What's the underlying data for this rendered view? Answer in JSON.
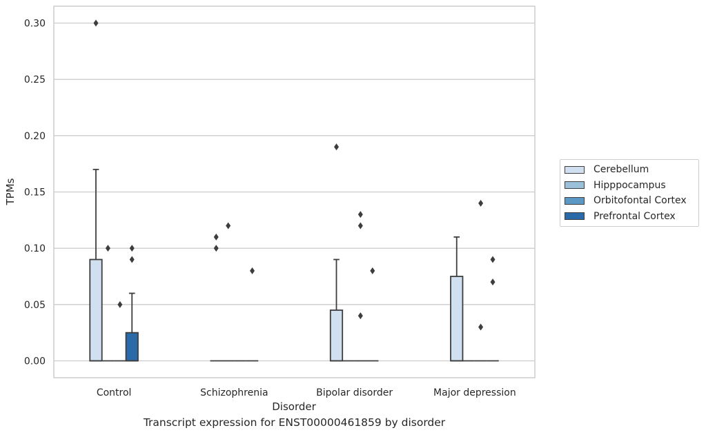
{
  "chart_data": {
    "type": "box",
    "xlabel": "Disorder",
    "ylabel": "TPMs",
    "caption": "Transcript expression for ENST00000461859 by disorder",
    "categories": [
      "Control",
      "Schizophrenia",
      "Bipolar disorder",
      "Major depression"
    ],
    "ylim": [
      -0.015,
      0.315
    ],
    "yticks": [
      0.0,
      0.05,
      0.1,
      0.15,
      0.2,
      0.25,
      0.3
    ],
    "ytick_labels": [
      "0.00",
      "0.05",
      "0.10",
      "0.15",
      "0.20",
      "0.25",
      "0.30"
    ],
    "grid": true,
    "legend_position": "right",
    "series": [
      {
        "name": "Cerebellum",
        "color": "#d1e0f0",
        "boxes": [
          {
            "q1": 0.0,
            "median": 0.0,
            "q3": 0.09,
            "whisker_low": 0.0,
            "whisker_high": 0.17,
            "outliers": [
              0.3
            ]
          },
          {
            "q1": 0.0,
            "median": 0.0,
            "q3": 0.0,
            "whisker_low": 0.0,
            "whisker_high": 0.0,
            "outliers": [
              0.1,
              0.11
            ]
          },
          {
            "q1": 0.0,
            "median": 0.0,
            "q3": 0.045,
            "whisker_low": 0.0,
            "whisker_high": 0.09,
            "outliers": [
              0.19
            ]
          },
          {
            "q1": 0.0,
            "median": 0.0,
            "q3": 0.075,
            "whisker_low": 0.0,
            "whisker_high": 0.11,
            "outliers": []
          }
        ]
      },
      {
        "name": "Hipppocampus",
        "color": "#9ac0da",
        "boxes": [
          {
            "q1": 0.0,
            "median": 0.0,
            "q3": 0.0,
            "whisker_low": 0.0,
            "whisker_high": 0.0,
            "outliers": [
              0.1
            ]
          },
          {
            "q1": 0.0,
            "median": 0.0,
            "q3": 0.0,
            "whisker_low": 0.0,
            "whisker_high": 0.0,
            "outliers": [
              0.12
            ]
          },
          {
            "q1": 0.0,
            "median": 0.0,
            "q3": 0.0,
            "whisker_low": 0.0,
            "whisker_high": 0.0,
            "outliers": []
          },
          {
            "q1": 0.0,
            "median": 0.0,
            "q3": 0.0,
            "whisker_low": 0.0,
            "whisker_high": 0.0,
            "outliers": []
          }
        ]
      },
      {
        "name": "Orbitofontal Cortex",
        "color": "#5b98c4",
        "boxes": [
          {
            "q1": 0.0,
            "median": 0.0,
            "q3": 0.0,
            "whisker_low": 0.0,
            "whisker_high": 0.0,
            "outliers": [
              0.05
            ]
          },
          {
            "q1": 0.0,
            "median": 0.0,
            "q3": 0.0,
            "whisker_low": 0.0,
            "whisker_high": 0.0,
            "outliers": []
          },
          {
            "q1": 0.0,
            "median": 0.0,
            "q3": 0.0,
            "whisker_low": 0.0,
            "whisker_high": 0.0,
            "outliers": [
              0.04,
              0.12,
              0.13
            ]
          },
          {
            "q1": 0.0,
            "median": 0.0,
            "q3": 0.0,
            "whisker_low": 0.0,
            "whisker_high": 0.0,
            "outliers": [
              0.03,
              0.14
            ]
          }
        ]
      },
      {
        "name": "Prefrontal Cortex",
        "color": "#2b6aa8",
        "boxes": [
          {
            "q1": 0.0,
            "median": 0.0,
            "q3": 0.025,
            "whisker_low": 0.0,
            "whisker_high": 0.06,
            "outliers": [
              0.09,
              0.1
            ]
          },
          {
            "q1": 0.0,
            "median": 0.0,
            "q3": 0.0,
            "whisker_low": 0.0,
            "whisker_high": 0.0,
            "outliers": [
              0.08
            ]
          },
          {
            "q1": 0.0,
            "median": 0.0,
            "q3": 0.0,
            "whisker_low": 0.0,
            "whisker_high": 0.0,
            "outliers": [
              0.08
            ]
          },
          {
            "q1": 0.0,
            "median": 0.0,
            "q3": 0.0,
            "whisker_low": 0.0,
            "whisker_high": 0.0,
            "outliers": [
              0.07,
              0.09
            ]
          }
        ]
      }
    ]
  }
}
